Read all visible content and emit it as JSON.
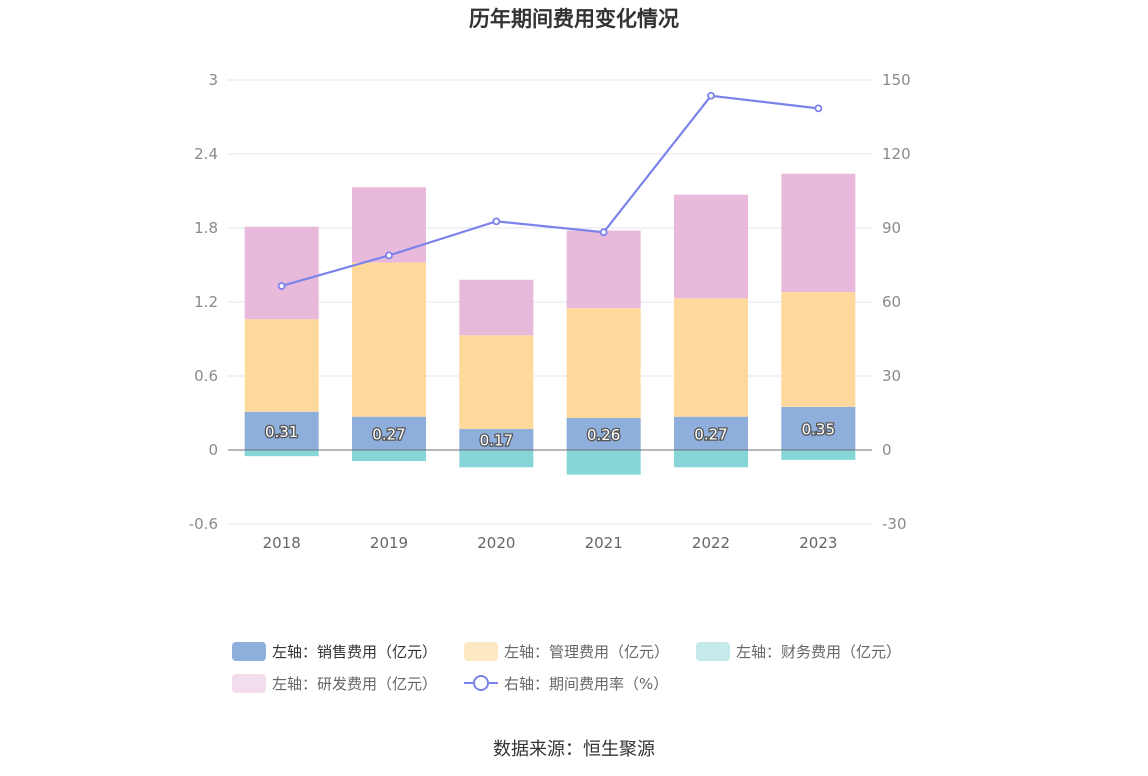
{
  "chart_data": {
    "type": "bar",
    "title": "历年期间费用变化情况",
    "categories": [
      "2018",
      "2019",
      "2020",
      "2021",
      "2022",
      "2023"
    ],
    "stacked": true,
    "left_axis": {
      "min": -0.6,
      "max": 3,
      "ticks": [
        "-0.6",
        "0",
        "0.6",
        "1.2",
        "1.8",
        "2.4",
        "3"
      ],
      "tick_values": [
        -0.6,
        0,
        0.6,
        1.2,
        1.8,
        2.4,
        3
      ]
    },
    "right_axis": {
      "min": -30,
      "max": 150,
      "ticks": [
        "-30",
        "0",
        "30",
        "60",
        "90",
        "120",
        "150"
      ],
      "tick_values": [
        -30,
        0,
        30,
        60,
        90,
        120,
        150
      ]
    },
    "series": [
      {
        "name": "左轴：销售费用（亿元）",
        "type": "bar",
        "axis": "left",
        "color": "#8eaedc",
        "legend_color": "#8eaedc",
        "values": [
          0.31,
          0.27,
          0.17,
          0.26,
          0.27,
          0.35
        ],
        "labels": [
          "0.31",
          "0.27",
          "0.17",
          "0.26",
          "0.27",
          "0.35"
        ]
      },
      {
        "name": "左轴：管理费用（亿元）",
        "type": "bar",
        "axis": "left",
        "color": "#ffd99b",
        "legend_color": "#fde8c4",
        "values": [
          0.75,
          1.25,
          0.76,
          0.89,
          0.96,
          0.93
        ]
      },
      {
        "name": "左轴：财务费用（亿元）",
        "type": "bar",
        "axis": "left",
        "color": "#86d6d8",
        "legend_color": "#c4eaeb",
        "values": [
          -0.05,
          -0.09,
          -0.14,
          -0.2,
          -0.14,
          -0.08
        ]
      },
      {
        "name": "左轴：研发费用（亿元）",
        "type": "bar",
        "axis": "left",
        "color": "#e8b9da",
        "legend_color": "#f3dcec",
        "values": [
          0.75,
          0.61,
          0.45,
          0.63,
          0.84,
          0.96
        ]
      },
      {
        "name": "右轴：期间费用率（%）",
        "type": "line",
        "axis": "right",
        "color": "#7b83eb",
        "values": [
          66.5,
          78.9,
          92.7,
          88.3,
          143.6,
          138.5
        ]
      }
    ],
    "legend_position": "bottom",
    "grid": true
  },
  "source_text": "数据来源：恒生聚源"
}
